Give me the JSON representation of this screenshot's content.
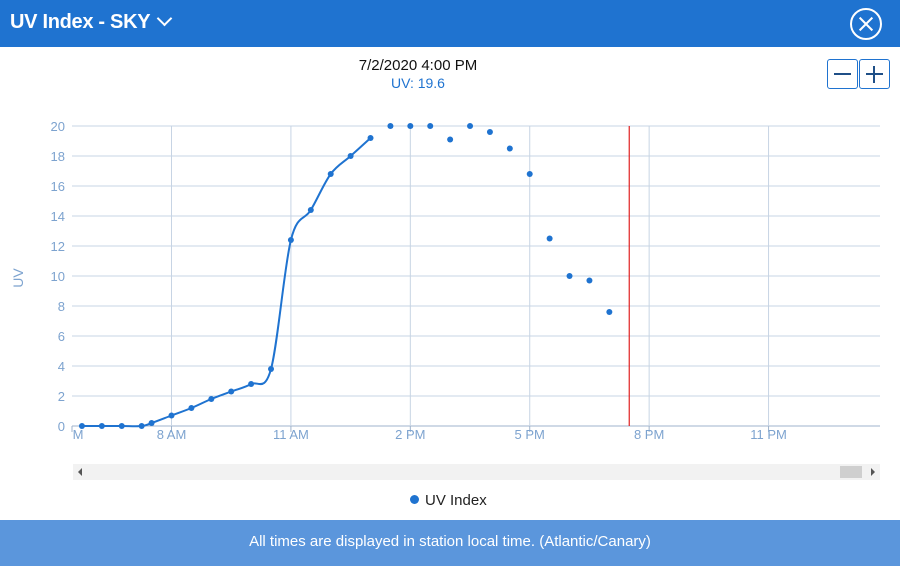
{
  "header": {
    "title": "UV Index - SKY",
    "title_icon": "chevron-down-icon",
    "close_icon": "close-circle-icon"
  },
  "tooltip": {
    "time": "7/2/2020 4:00 PM",
    "value": "UV: 19.6"
  },
  "zoom": {
    "minus_icon": "minus-icon",
    "plus_icon": "plus-icon"
  },
  "legend": {
    "label": "UV Index"
  },
  "footer": {
    "text": "All times are displayed in station local time. (Atlantic/Canary)"
  },
  "colors": {
    "header": "#1f73d0",
    "series": "#1f73d0",
    "grid": "#c7d4e4",
    "now_line": "#e02020",
    "footer": "#5b96dc"
  },
  "chart_data": {
    "type": "line",
    "ylabel": "UV",
    "xlabel": "",
    "ylim": [
      0,
      20
    ],
    "yticks": [
      0,
      2,
      4,
      6,
      8,
      10,
      12,
      14,
      16,
      18,
      20
    ],
    "x_unit": "hour_of_day",
    "xlim": [
      5.5,
      25.8
    ],
    "xticks": [
      {
        "hour": 5.5,
        "label": "M"
      },
      {
        "hour": 8,
        "label": "8 AM"
      },
      {
        "hour": 11,
        "label": "11 AM"
      },
      {
        "hour": 14,
        "label": "2 PM"
      },
      {
        "hour": 17,
        "label": "5 PM"
      },
      {
        "hour": 20,
        "label": "8 PM"
      },
      {
        "hour": 23,
        "label": "11 PM"
      }
    ],
    "vertical_marker_hour": 19.5,
    "series": [
      {
        "name": "UV Index",
        "line_points": [
          [
            5.75,
            0
          ],
          [
            6.25,
            0
          ],
          [
            6.75,
            0
          ],
          [
            7.25,
            0
          ],
          [
            7.5,
            0.2
          ],
          [
            8.0,
            0.7
          ],
          [
            8.5,
            1.2
          ],
          [
            9.0,
            1.8
          ],
          [
            9.5,
            2.3
          ],
          [
            10.0,
            2.8
          ],
          [
            10.5,
            3.8
          ],
          [
            11.0,
            12.4
          ],
          [
            11.5,
            14.4
          ],
          [
            12.0,
            16.8
          ],
          [
            12.5,
            18.0
          ],
          [
            13.0,
            19.2
          ]
        ],
        "scatter_points": [
          [
            13.5,
            20.0
          ],
          [
            14.0,
            20.0
          ],
          [
            14.5,
            20.0
          ],
          [
            15.0,
            19.1
          ],
          [
            15.5,
            20.0
          ],
          [
            16.0,
            19.6
          ],
          [
            16.5,
            18.5
          ],
          [
            17.0,
            16.8
          ],
          [
            17.5,
            12.5
          ],
          [
            18.0,
            10.0
          ],
          [
            18.5,
            9.7
          ],
          [
            19.0,
            7.6
          ]
        ]
      }
    ]
  }
}
